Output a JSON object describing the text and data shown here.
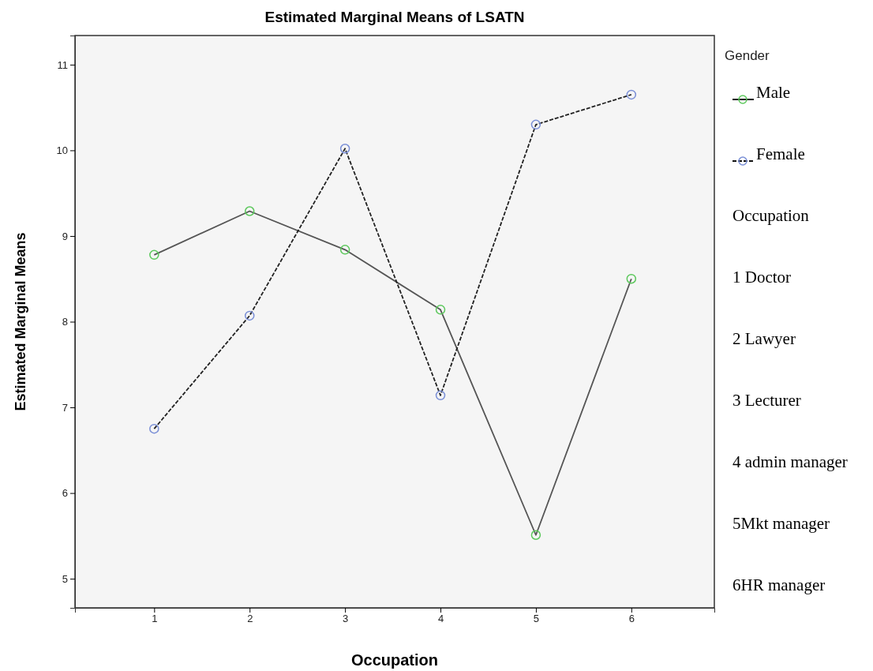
{
  "chart_data": {
    "type": "line",
    "title": "Estimated Marginal Means of LSATN",
    "xlabel": "Occupation",
    "ylabel": "Estimated Marginal Means",
    "x": [
      1,
      2,
      3,
      4,
      5,
      6
    ],
    "series": [
      {
        "name": "Male",
        "color": "#5cc85c",
        "line_style": "solid",
        "values": [
          8.78,
          9.29,
          8.84,
          8.14,
          5.51,
          8.5
        ]
      },
      {
        "name": "Female",
        "color": "#7a8fd6",
        "line_style": "dashed",
        "values": [
          6.75,
          8.07,
          10.02,
          7.14,
          10.3,
          10.65
        ]
      }
    ],
    "xlim": [
      0.17,
      6.87
    ],
    "xticks": [
      1,
      2,
      3,
      4,
      5,
      6
    ],
    "ylim": [
      4.66,
      11.34
    ],
    "yticks": [
      5,
      6,
      7,
      8,
      9,
      10,
      11
    ],
    "marker": "circle",
    "grid": false,
    "legend": "right",
    "legend_title": "Gender",
    "annotations": [
      "Occupation",
      "1 Doctor",
      "2 Lawyer",
      "3 Lecturer",
      "4 admin manager",
      "5Mkt manager",
      "6HR manager"
    ]
  }
}
